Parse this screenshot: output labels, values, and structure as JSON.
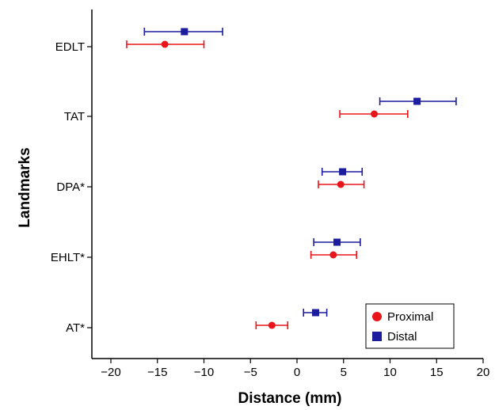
{
  "chart_data": {
    "type": "scatter",
    "orientation": "horizontal-errorbar",
    "title": "",
    "xlabel": "Distance (mm)",
    "ylabel": "Landmarks",
    "xlim": [
      -21,
      20
    ],
    "xticks": [
      -20,
      -15,
      -10,
      -5,
      0,
      5,
      10,
      15,
      20
    ],
    "categories": [
      "EDLT",
      "TAT",
      "DPA*",
      "EHLT*",
      "AT*"
    ],
    "grid": false,
    "legend": "bottom-right",
    "series": [
      {
        "name": "Proximal",
        "marker": "circle",
        "color": "#e8161b",
        "points": [
          {
            "category": "EDLT",
            "value": -14.2,
            "err_low": -18.3,
            "err_high": -10.0
          },
          {
            "category": "TAT",
            "value": 8.3,
            "err_low": 4.6,
            "err_high": 11.9
          },
          {
            "category": "DPA*",
            "value": 4.7,
            "err_low": 2.3,
            "err_high": 7.2
          },
          {
            "category": "EHLT*",
            "value": 3.9,
            "err_low": 1.5,
            "err_high": 6.4
          },
          {
            "category": "AT*",
            "value": -2.7,
            "err_low": -4.4,
            "err_high": -1.0
          }
        ]
      },
      {
        "name": "Distal",
        "marker": "square",
        "color": "#1c1c9e",
        "points": [
          {
            "category": "EDLT",
            "value": -12.1,
            "err_low": -16.4,
            "err_high": -8.0
          },
          {
            "category": "TAT",
            "value": 12.9,
            "err_low": 8.9,
            "err_high": 17.1
          },
          {
            "category": "DPA*",
            "value": 4.9,
            "err_low": 2.7,
            "err_high": 7.0
          },
          {
            "category": "EHLT*",
            "value": 4.3,
            "err_low": 1.8,
            "err_high": 6.8
          },
          {
            "category": "AT*",
            "value": 2.0,
            "err_low": 0.7,
            "err_high": 3.2
          }
        ]
      }
    ]
  }
}
